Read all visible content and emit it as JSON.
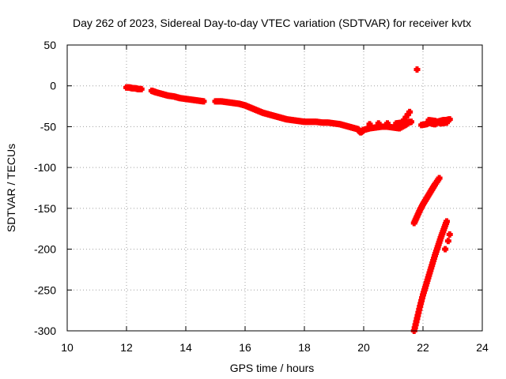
{
  "chart_data": {
    "type": "scatter",
    "title": "Day 262 of 2023, Sidereal Day-to-day VTEC variation (SDTVAR) for receiver kvtx",
    "xlabel": "GPS time / hours",
    "ylabel": "SDTVAR / TECUs",
    "xlim": [
      10,
      24
    ],
    "ylim": [
      -300,
      50
    ],
    "xticks": [
      10,
      12,
      14,
      16,
      18,
      20,
      22,
      24
    ],
    "yticks": [
      50,
      0,
      -50,
      -100,
      -150,
      -200,
      -250,
      -300
    ],
    "grid": true,
    "marker": "plus",
    "color": "#ff0000",
    "series": [
      {
        "values_xy": [
          [
            12.0,
            -2
          ],
          [
            12.1,
            -2
          ],
          [
            12.2,
            -3
          ],
          [
            12.3,
            -3
          ],
          [
            12.4,
            -4
          ],
          [
            12.5,
            -4
          ],
          [
            12.85,
            -6
          ],
          [
            13.0,
            -8
          ],
          [
            13.2,
            -10
          ],
          [
            13.4,
            -12
          ],
          [
            13.6,
            -13
          ],
          [
            13.8,
            -15
          ],
          [
            14.0,
            -16
          ],
          [
            14.2,
            -17
          ],
          [
            14.4,
            -18
          ],
          [
            14.6,
            -19
          ],
          [
            15.0,
            -19
          ],
          [
            15.2,
            -19
          ],
          [
            15.4,
            -20
          ],
          [
            15.6,
            -21
          ],
          [
            15.8,
            -22
          ],
          [
            16.0,
            -24
          ],
          [
            16.2,
            -27
          ],
          [
            16.4,
            -30
          ],
          [
            16.6,
            -33
          ],
          [
            16.8,
            -35
          ],
          [
            17.0,
            -37
          ],
          [
            17.2,
            -39
          ],
          [
            17.4,
            -41
          ],
          [
            17.6,
            -42
          ],
          [
            17.8,
            -43
          ],
          [
            18.0,
            -44
          ],
          [
            18.2,
            -44
          ],
          [
            18.4,
            -44
          ],
          [
            18.6,
            -45
          ],
          [
            18.8,
            -45
          ],
          [
            19.0,
            -46
          ],
          [
            19.2,
            -47
          ],
          [
            19.4,
            -49
          ],
          [
            19.6,
            -51
          ],
          [
            19.8,
            -53
          ],
          [
            19.9,
            -57
          ],
          [
            20.0,
            -54
          ],
          [
            20.2,
            -52
          ],
          [
            20.4,
            -51
          ],
          [
            20.6,
            -50
          ],
          [
            20.8,
            -50
          ],
          [
            21.0,
            -51
          ],
          [
            21.2,
            -52
          ],
          [
            21.4,
            -48
          ],
          [
            21.5,
            -45
          ],
          [
            21.6,
            -44
          ],
          [
            20.2,
            -47
          ],
          [
            20.5,
            -46
          ],
          [
            20.8,
            -46
          ],
          [
            21.1,
            -46
          ],
          [
            21.3,
            -45
          ],
          [
            21.55,
            -32
          ],
          [
            21.8,
            20
          ],
          [
            21.95,
            -48
          ],
          [
            22.1,
            -47
          ],
          [
            22.2,
            -45
          ],
          [
            22.3,
            -46
          ],
          [
            22.4,
            -47
          ],
          [
            22.5,
            -44
          ],
          [
            22.6,
            -43
          ],
          [
            22.7,
            -42
          ],
          [
            22.8,
            -42
          ],
          [
            22.9,
            -41
          ],
          [
            22.2,
            -42
          ],
          [
            22.4,
            -43
          ],
          [
            22.6,
            -46
          ],
          [
            22.8,
            -45
          ],
          [
            21.7,
            -168
          ],
          [
            21.8,
            -160
          ],
          [
            21.9,
            -152
          ],
          [
            22.0,
            -145
          ],
          [
            22.1,
            -139
          ],
          [
            22.2,
            -133
          ],
          [
            22.3,
            -127
          ],
          [
            22.4,
            -121
          ],
          [
            22.55,
            -113
          ],
          [
            21.7,
            -300
          ],
          [
            21.8,
            -285
          ],
          [
            21.9,
            -270
          ],
          [
            22.0,
            -256
          ],
          [
            22.1,
            -244
          ],
          [
            22.2,
            -232
          ],
          [
            22.3,
            -220
          ],
          [
            22.4,
            -208
          ],
          [
            22.5,
            -197
          ],
          [
            22.6,
            -186
          ],
          [
            22.7,
            -176
          ],
          [
            22.8,
            -166
          ],
          [
            22.9,
            -182
          ],
          [
            22.85,
            -190
          ],
          [
            22.75,
            -200
          ]
        ]
      }
    ]
  }
}
